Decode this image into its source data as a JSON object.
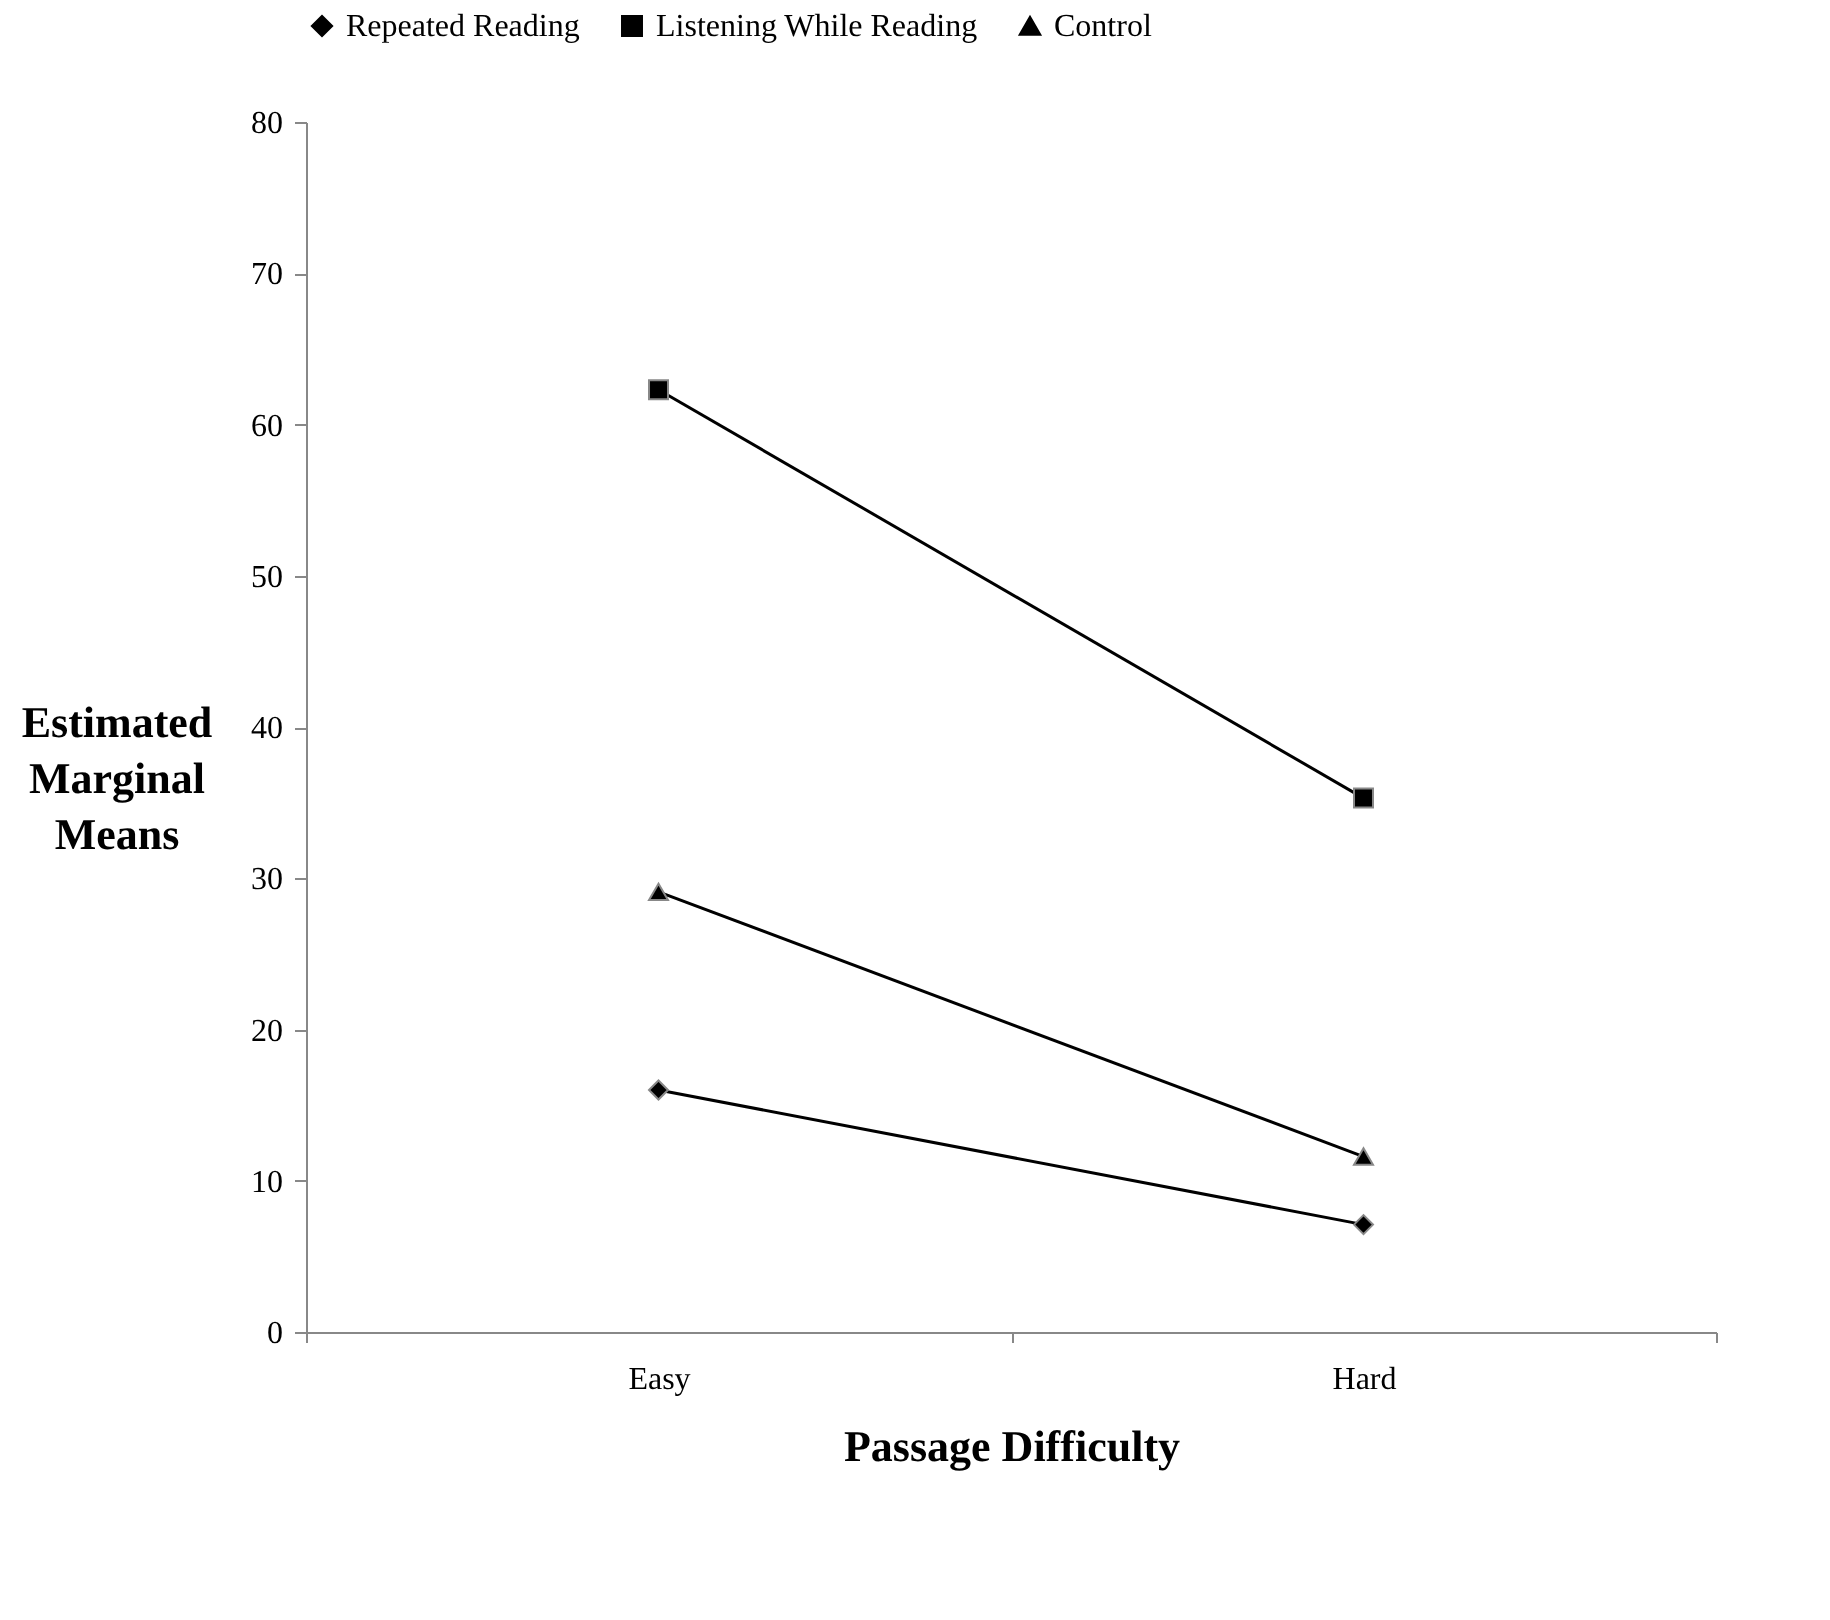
{
  "chart_data": {
    "type": "line",
    "xlabel": "Passage Difficulty",
    "ylabel": "Estimated Marginal Means",
    "categories": [
      "Easy",
      "Hard"
    ],
    "series": [
      {
        "name": "Repeated Reading",
        "color": "#000000",
        "marker": "diamond",
        "values": [
          16.0,
          7.1
        ]
      },
      {
        "name": "Listening While Reading",
        "color": "#000000",
        "marker": "square",
        "values": [
          62.3,
          35.3
        ]
      },
      {
        "name": "Control",
        "color": "#000000",
        "marker": "triangle",
        "values": [
          29.1,
          11.6
        ]
      }
    ],
    "ylim": [
      0,
      80
    ],
    "yticks": [
      0,
      10,
      20,
      30,
      40,
      50,
      60,
      70,
      80
    ],
    "grid": false,
    "legend": "top"
  }
}
